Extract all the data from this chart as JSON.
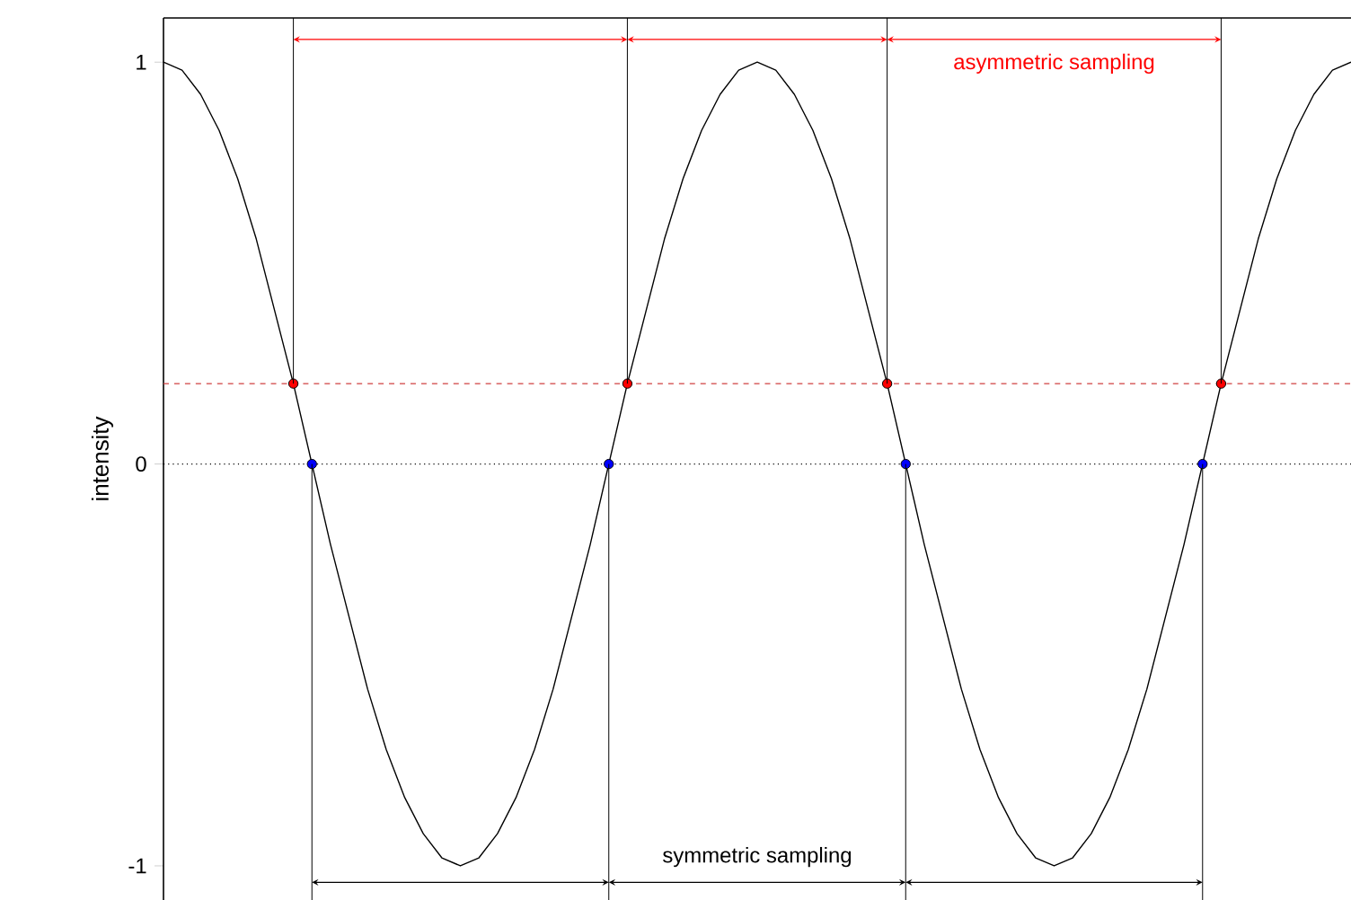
{
  "chart_data": {
    "type": "line",
    "ylabel": "intensity",
    "categories": [
      null,
      null,
      null,
      null,
      null,
      null,
      null,
      null,
      null,
      null,
      null,
      null,
      null,
      null,
      null,
      null,
      null,
      null,
      null,
      null,
      null,
      null,
      null,
      null,
      null,
      null,
      null,
      null,
      null,
      null,
      null,
      null,
      null,
      null,
      null,
      null,
      null,
      null,
      null,
      null,
      null,
      null,
      null,
      null,
      null,
      null,
      null,
      null,
      null,
      null,
      null,
      null,
      null,
      null,
      null,
      null,
      null,
      null,
      null,
      null,
      null,
      null,
      null,
      null,
      null
    ],
    "ylim": [
      -1.085,
      1.11
    ],
    "yticks": [
      -1,
      0,
      1
    ],
    "tick_labels": "y",
    "series": [
      {
        "color": "#000000",
        "values": [
          1,
          0.98,
          0.92,
          0.83,
          0.71,
          0.56,
          0.38,
          0.2,
          0,
          -0.2,
          -0.38,
          -0.56,
          -0.71,
          -0.83,
          -0.92,
          -0.98,
          -1,
          -0.98,
          -0.92,
          -0.83,
          -0.71,
          -0.56,
          -0.38,
          -0.2,
          0,
          0.2,
          0.38,
          0.56,
          0.71,
          0.83,
          0.92,
          0.98,
          1,
          0.98,
          0.92,
          0.83,
          0.71,
          0.56,
          0.38,
          0.2,
          0,
          -0.2,
          -0.38,
          -0.56,
          -0.71,
          -0.83,
          -0.92,
          -0.98,
          -1,
          -0.98,
          -0.92,
          -0.83,
          -0.71,
          -0.56,
          -0.38,
          -0.2,
          0,
          0.2,
          0.38,
          0.56,
          0.71,
          0.83,
          0.92,
          0.98,
          1
        ]
      },
      {
        "type": "scatter",
        "color": "#ff0000",
        "marker": "circle",
        "values": [
          null,
          null,
          null,
          null,
          null,
          null,
          null,
          0.2,
          null,
          null,
          null,
          null,
          null,
          null,
          null,
          null,
          null,
          null,
          null,
          null,
          null,
          null,
          null,
          null,
          null,
          0.2,
          null,
          null,
          null,
          null,
          null,
          null,
          null,
          null,
          null,
          null,
          null,
          null,
          null,
          0.2,
          null,
          null,
          null,
          null,
          null,
          null,
          null,
          null,
          null,
          null,
          null,
          null,
          null,
          null,
          null,
          null,
          null,
          0.2,
          null,
          null,
          null,
          null,
          null,
          null,
          null
        ]
      },
      {
        "type": "scatter",
        "color": "#0000ff",
        "marker": "circle",
        "values": [
          null,
          null,
          null,
          null,
          null,
          null,
          null,
          null,
          0,
          null,
          null,
          null,
          null,
          null,
          null,
          null,
          null,
          null,
          null,
          null,
          null,
          null,
          null,
          null,
          0,
          null,
          null,
          null,
          null,
          null,
          null,
          null,
          null,
          null,
          null,
          null,
          null,
          null,
          null,
          null,
          0,
          null,
          null,
          null,
          null,
          null,
          null,
          null,
          null,
          null,
          null,
          null,
          null,
          null,
          null,
          null,
          0,
          null,
          null,
          null,
          null,
          null,
          null,
          null,
          null
        ]
      }
    ],
    "ref_lines": [
      {
        "axis": "y",
        "value": 0.2,
        "color": "#d04040",
        "line_style": "dashed"
      },
      {
        "axis": "y",
        "value": 0,
        "color": "#000000",
        "line_style": "dotted"
      }
    ],
    "annotations": [
      "asymmetric sampling",
      "symmetric sampling"
    ]
  }
}
